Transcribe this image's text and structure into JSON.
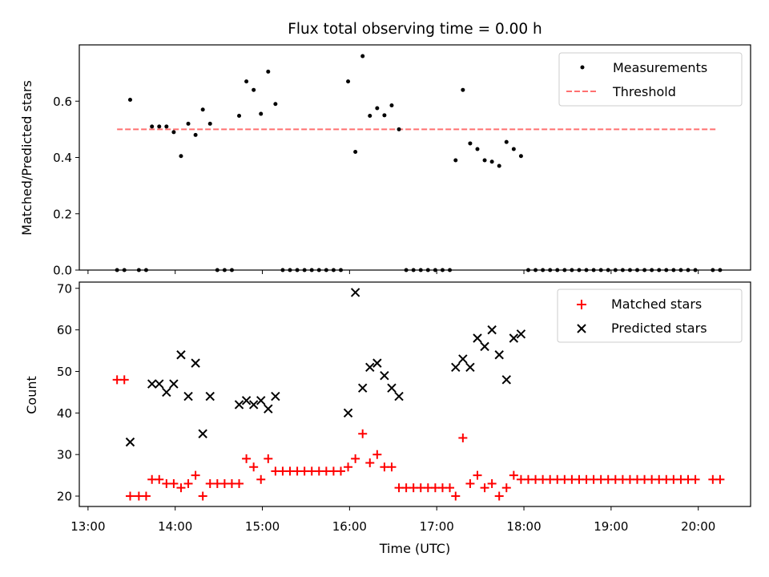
{
  "chart_data": [
    {
      "type": "scatter",
      "title": "Flux total observing time = 0.00 h",
      "xlabel": "",
      "ylabel": "Matched/Predicted stars",
      "x_range": [
        "12:54",
        "20:36"
      ],
      "ylim": [
        0,
        0.8
      ],
      "y_ticks": [
        "0.0",
        "0.2",
        "0.4",
        "0.6"
      ],
      "grid": false,
      "legend_position": "upper right",
      "series": [
        {
          "name": "Measurements",
          "marker": "dot",
          "color": "#000000",
          "points": [
            [
              "13:20",
              0
            ],
            [
              "13:25",
              0
            ],
            [
              "13:29",
              0.605
            ],
            [
              "13:35",
              0
            ],
            [
              "13:40",
              0
            ],
            [
              "13:44",
              0.51
            ],
            [
              "13:49",
              0.51
            ],
            [
              "13:54",
              0.51
            ],
            [
              "13:59",
              0.49
            ],
            [
              "14:04",
              0.405
            ],
            [
              "14:09",
              0.52
            ],
            [
              "14:14",
              0.48
            ],
            [
              "14:19",
              0.57
            ],
            [
              "14:24",
              0.52
            ],
            [
              "14:29",
              0
            ],
            [
              "14:34",
              0
            ],
            [
              "14:39",
              0
            ],
            [
              "14:44",
              0.548
            ],
            [
              "14:49",
              0.67
            ],
            [
              "14:54",
              0.64
            ],
            [
              "14:59",
              0.555
            ],
            [
              "15:04",
              0.705
            ],
            [
              "15:09",
              0.59
            ],
            [
              "15:14",
              0
            ],
            [
              "15:19",
              0
            ],
            [
              "15:24",
              0
            ],
            [
              "15:29",
              0
            ],
            [
              "15:34",
              0
            ],
            [
              "15:39",
              0
            ],
            [
              "15:44",
              0
            ],
            [
              "15:49",
              0
            ],
            [
              "15:54",
              0
            ],
            [
              "15:59",
              0.67
            ],
            [
              "16:04",
              0.42
            ],
            [
              "16:09",
              0.76
            ],
            [
              "16:14",
              0.548
            ],
            [
              "16:19",
              0.575
            ],
            [
              "16:24",
              0.55
            ],
            [
              "16:29",
              0.585
            ],
            [
              "16:34",
              0.5
            ],
            [
              "16:39",
              0
            ],
            [
              "16:44",
              0
            ],
            [
              "16:49",
              0
            ],
            [
              "16:54",
              0
            ],
            [
              "16:59",
              0
            ],
            [
              "17:04",
              0
            ],
            [
              "17:09",
              0
            ],
            [
              "17:13",
              0.39
            ],
            [
              "17:18",
              0.64
            ],
            [
              "17:23",
              0.45
            ],
            [
              "17:28",
              0.43
            ],
            [
              "17:33",
              0.39
            ],
            [
              "17:38",
              0.385
            ],
            [
              "17:43",
              0.37
            ],
            [
              "17:48",
              0.455
            ],
            [
              "17:53",
              0.43
            ],
            [
              "17:58",
              0.405
            ],
            [
              "18:03",
              0
            ],
            [
              "18:08",
              0
            ],
            [
              "18:13",
              0
            ],
            [
              "18:18",
              0
            ],
            [
              "18:23",
              0
            ],
            [
              "18:28",
              0
            ],
            [
              "18:33",
              0
            ],
            [
              "18:38",
              0
            ],
            [
              "18:43",
              0
            ],
            [
              "18:48",
              0
            ],
            [
              "18:53",
              0
            ],
            [
              "18:58",
              0
            ],
            [
              "19:03",
              0
            ],
            [
              "19:08",
              0
            ],
            [
              "19:13",
              0
            ],
            [
              "19:18",
              0
            ],
            [
              "19:23",
              0
            ],
            [
              "19:28",
              0
            ],
            [
              "19:33",
              0
            ],
            [
              "19:38",
              0
            ],
            [
              "19:43",
              0
            ],
            [
              "19:48",
              0
            ],
            [
              "19:53",
              0
            ],
            [
              "19:58",
              0
            ],
            [
              "20:10",
              0
            ],
            [
              "20:15",
              0
            ]
          ]
        },
        {
          "name": "Threshold",
          "marker": "dashed-line",
          "color": "#ff7070",
          "points": [
            [
              "13:20",
              0.5
            ],
            [
              "20:12",
              0.5
            ]
          ]
        }
      ]
    },
    {
      "type": "scatter",
      "title": "",
      "xlabel": "Time (UTC)",
      "ylabel": "Count",
      "x_ticks": [
        "13:00",
        "14:00",
        "15:00",
        "16:00",
        "17:00",
        "18:00",
        "19:00",
        "20:00"
      ],
      "x_range": [
        "12:54",
        "20:36"
      ],
      "ylim": [
        17.5,
        71.5
      ],
      "y_ticks": [
        "20",
        "30",
        "40",
        "50",
        "60",
        "70"
      ],
      "grid": false,
      "legend_position": "upper right",
      "series": [
        {
          "name": "Matched stars",
          "marker": "plus",
          "color": "#ff0000",
          "points": [
            [
              "13:20",
              48
            ],
            [
              "13:25",
              48
            ],
            [
              "13:29",
              20
            ],
            [
              "13:35",
              20
            ],
            [
              "13:40",
              20
            ],
            [
              "13:44",
              24
            ],
            [
              "13:49",
              24
            ],
            [
              "13:54",
              23
            ],
            [
              "13:59",
              23
            ],
            [
              "14:04",
              22
            ],
            [
              "14:09",
              23
            ],
            [
              "14:14",
              25
            ],
            [
              "14:19",
              20
            ],
            [
              "14:24",
              23
            ],
            [
              "14:29",
              23
            ],
            [
              "14:34",
              23
            ],
            [
              "14:39",
              23
            ],
            [
              "14:44",
              23
            ],
            [
              "14:49",
              29
            ],
            [
              "14:54",
              27
            ],
            [
              "14:59",
              24
            ],
            [
              "15:04",
              29
            ],
            [
              "15:09",
              26
            ],
            [
              "15:14",
              26
            ],
            [
              "15:19",
              26
            ],
            [
              "15:24",
              26
            ],
            [
              "15:29",
              26
            ],
            [
              "15:34",
              26
            ],
            [
              "15:39",
              26
            ],
            [
              "15:44",
              26
            ],
            [
              "15:49",
              26
            ],
            [
              "15:54",
              26
            ],
            [
              "15:59",
              27
            ],
            [
              "16:04",
              29
            ],
            [
              "16:09",
              35
            ],
            [
              "16:14",
              28
            ],
            [
              "16:19",
              30
            ],
            [
              "16:24",
              27
            ],
            [
              "16:29",
              27
            ],
            [
              "16:34",
              22
            ],
            [
              "16:39",
              22
            ],
            [
              "16:44",
              22
            ],
            [
              "16:49",
              22
            ],
            [
              "16:54",
              22
            ],
            [
              "16:59",
              22
            ],
            [
              "17:04",
              22
            ],
            [
              "17:09",
              22
            ],
            [
              "17:13",
              20
            ],
            [
              "17:18",
              34
            ],
            [
              "17:23",
              23
            ],
            [
              "17:28",
              25
            ],
            [
              "17:33",
              22
            ],
            [
              "17:38",
              23
            ],
            [
              "17:43",
              20
            ],
            [
              "17:48",
              22
            ],
            [
              "17:53",
              25
            ],
            [
              "17:58",
              24
            ],
            [
              "18:03",
              24
            ],
            [
              "18:08",
              24
            ],
            [
              "18:13",
              24
            ],
            [
              "18:18",
              24
            ],
            [
              "18:23",
              24
            ],
            [
              "18:28",
              24
            ],
            [
              "18:33",
              24
            ],
            [
              "18:38",
              24
            ],
            [
              "18:43",
              24
            ],
            [
              "18:48",
              24
            ],
            [
              "18:53",
              24
            ],
            [
              "18:58",
              24
            ],
            [
              "19:03",
              24
            ],
            [
              "19:08",
              24
            ],
            [
              "19:13",
              24
            ],
            [
              "19:18",
              24
            ],
            [
              "19:23",
              24
            ],
            [
              "19:28",
              24
            ],
            [
              "19:33",
              24
            ],
            [
              "19:38",
              24
            ],
            [
              "19:43",
              24
            ],
            [
              "19:48",
              24
            ],
            [
              "19:53",
              24
            ],
            [
              "19:58",
              24
            ],
            [
              "20:10",
              24
            ],
            [
              "20:15",
              24
            ]
          ]
        },
        {
          "name": "Predicted stars",
          "marker": "x",
          "color": "#000000",
          "points": [
            [
              "13:29",
              33
            ],
            [
              "13:44",
              47
            ],
            [
              "13:49",
              47
            ],
            [
              "13:54",
              45
            ],
            [
              "13:59",
              47
            ],
            [
              "14:04",
              54
            ],
            [
              "14:09",
              44
            ],
            [
              "14:14",
              52
            ],
            [
              "14:19",
              35
            ],
            [
              "14:24",
              44
            ],
            [
              "14:44",
              42
            ],
            [
              "14:49",
              43
            ],
            [
              "14:54",
              42
            ],
            [
              "14:59",
              43
            ],
            [
              "15:04",
              41
            ],
            [
              "15:09",
              44
            ],
            [
              "15:59",
              40
            ],
            [
              "16:04",
              69
            ],
            [
              "16:09",
              46
            ],
            [
              "16:14",
              51
            ],
            [
              "16:19",
              52
            ],
            [
              "16:24",
              49
            ],
            [
              "16:29",
              46
            ],
            [
              "16:34",
              44
            ],
            [
              "17:13",
              51
            ],
            [
              "17:18",
              53
            ],
            [
              "17:23",
              51
            ],
            [
              "17:28",
              58
            ],
            [
              "17:33",
              56
            ],
            [
              "17:38",
              60
            ],
            [
              "17:43",
              54
            ],
            [
              "17:48",
              48
            ],
            [
              "17:53",
              58
            ],
            [
              "17:58",
              59
            ]
          ]
        }
      ]
    }
  ]
}
